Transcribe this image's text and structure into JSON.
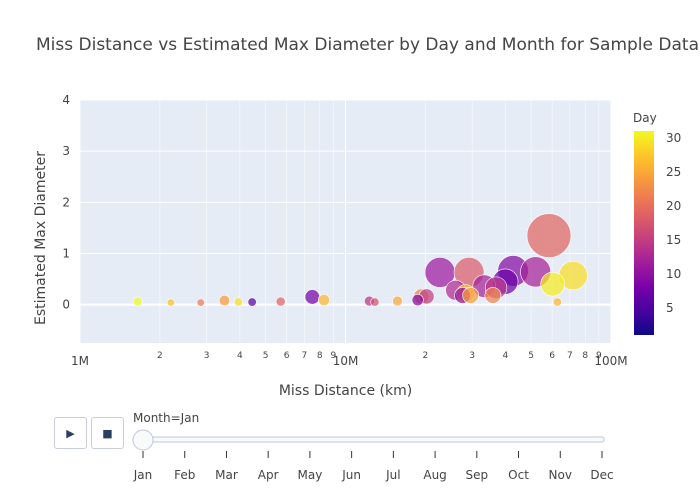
{
  "chart_data": {
    "type": "scatter",
    "title": "Miss Distance vs Estimated Max Diameter by Day and Month for Sample Data",
    "xlabel": "Miss Distance (km)",
    "ylabel": "Estimated Max Diameter",
    "x_scale": "log",
    "xlim": [
      1000000,
      100000000
    ],
    "ylim": [
      -0.75,
      4
    ],
    "y_ticks": [
      "0",
      "1",
      "2",
      "3",
      "4"
    ],
    "x_major_ticks": [
      "1M",
      "10M",
      "100M"
    ],
    "x_minor_ticks": [
      "2",
      "3",
      "4",
      "5",
      "6",
      "7",
      "8",
      "9"
    ],
    "color_scale": {
      "title": "Day",
      "min": 1,
      "max": 31,
      "ticks": [
        "5",
        "10",
        "15",
        "20",
        "25",
        "30"
      ],
      "colors": [
        "#0d0887",
        "#46039f",
        "#7201a8",
        "#9c179e",
        "#bd3786",
        "#d8576b",
        "#ed7953",
        "#fb9f3a",
        "#fdca26",
        "#f0f921"
      ]
    },
    "points": [
      {
        "x": 1650000,
        "y": 0.06,
        "size": 0.06,
        "day": 31
      },
      {
        "x": 2200000,
        "y": 0.04,
        "size": 0.04,
        "day": 27
      },
      {
        "x": 2850000,
        "y": 0.04,
        "size": 0.04,
        "day": 21
      },
      {
        "x": 3500000,
        "y": 0.08,
        "size": 0.08,
        "day": 24
      },
      {
        "x": 3950000,
        "y": 0.05,
        "size": 0.05,
        "day": 29
      },
      {
        "x": 4450000,
        "y": 0.05,
        "size": 0.05,
        "day": 6
      },
      {
        "x": 5700000,
        "y": 0.06,
        "size": 0.06,
        "day": 19
      },
      {
        "x": 7500000,
        "y": 0.15,
        "size": 0.15,
        "day": 8
      },
      {
        "x": 8300000,
        "y": 0.09,
        "size": 0.09,
        "day": 26
      },
      {
        "x": 12300000,
        "y": 0.07,
        "size": 0.07,
        "day": 14
      },
      {
        "x": 12900000,
        "y": 0.05,
        "size": 0.05,
        "day": 17
      },
      {
        "x": 15700000,
        "y": 0.07,
        "size": 0.07,
        "day": 25
      },
      {
        "x": 18700000,
        "y": 0.09,
        "size": 0.09,
        "day": 9
      },
      {
        "x": 19300000,
        "y": 0.16,
        "size": 0.16,
        "day": 22
      },
      {
        "x": 20200000,
        "y": 0.16,
        "size": 0.16,
        "day": 15
      },
      {
        "x": 22700000,
        "y": 0.63,
        "size": 0.63,
        "day": 11
      },
      {
        "x": 26000000,
        "y": 0.28,
        "size": 0.28,
        "day": 13
      },
      {
        "x": 27600000,
        "y": 0.18,
        "size": 0.18,
        "day": 10
      },
      {
        "x": 28300000,
        "y": 0.22,
        "size": 0.22,
        "day": 27
      },
      {
        "x": 29200000,
        "y": 0.63,
        "size": 0.63,
        "day": 18
      },
      {
        "x": 29600000,
        "y": 0.18,
        "size": 0.18,
        "day": 24
      },
      {
        "x": 33300000,
        "y": 0.36,
        "size": 0.36,
        "day": 12
      },
      {
        "x": 35900000,
        "y": 0.18,
        "size": 0.18,
        "day": 22
      },
      {
        "x": 36900000,
        "y": 0.33,
        "size": 0.33,
        "day": 14
      },
      {
        "x": 40000000,
        "y": 0.45,
        "size": 0.45,
        "day": 7
      },
      {
        "x": 42800000,
        "y": 0.66,
        "size": 0.66,
        "day": 9
      },
      {
        "x": 52000000,
        "y": 0.64,
        "size": 0.64,
        "day": 12
      },
      {
        "x": 58400000,
        "y": 1.35,
        "size": 1.35,
        "day": 19
      },
      {
        "x": 60300000,
        "y": 0.4,
        "size": 0.4,
        "day": 30
      },
      {
        "x": 62800000,
        "y": 0.05,
        "size": 0.05,
        "day": 26
      },
      {
        "x": 72000000,
        "y": 0.57,
        "size": 0.57,
        "day": 29
      }
    ]
  },
  "slider": {
    "current_prefix": "Month=",
    "current_value": "Jan",
    "active_index": 0,
    "months": [
      "Jan",
      "Feb",
      "Mar",
      "Apr",
      "May",
      "Jun",
      "Jul",
      "Aug",
      "Sep",
      "Oct",
      "Nov",
      "Dec"
    ]
  },
  "controls": {
    "play_label": "▶",
    "stop_label": "■"
  }
}
